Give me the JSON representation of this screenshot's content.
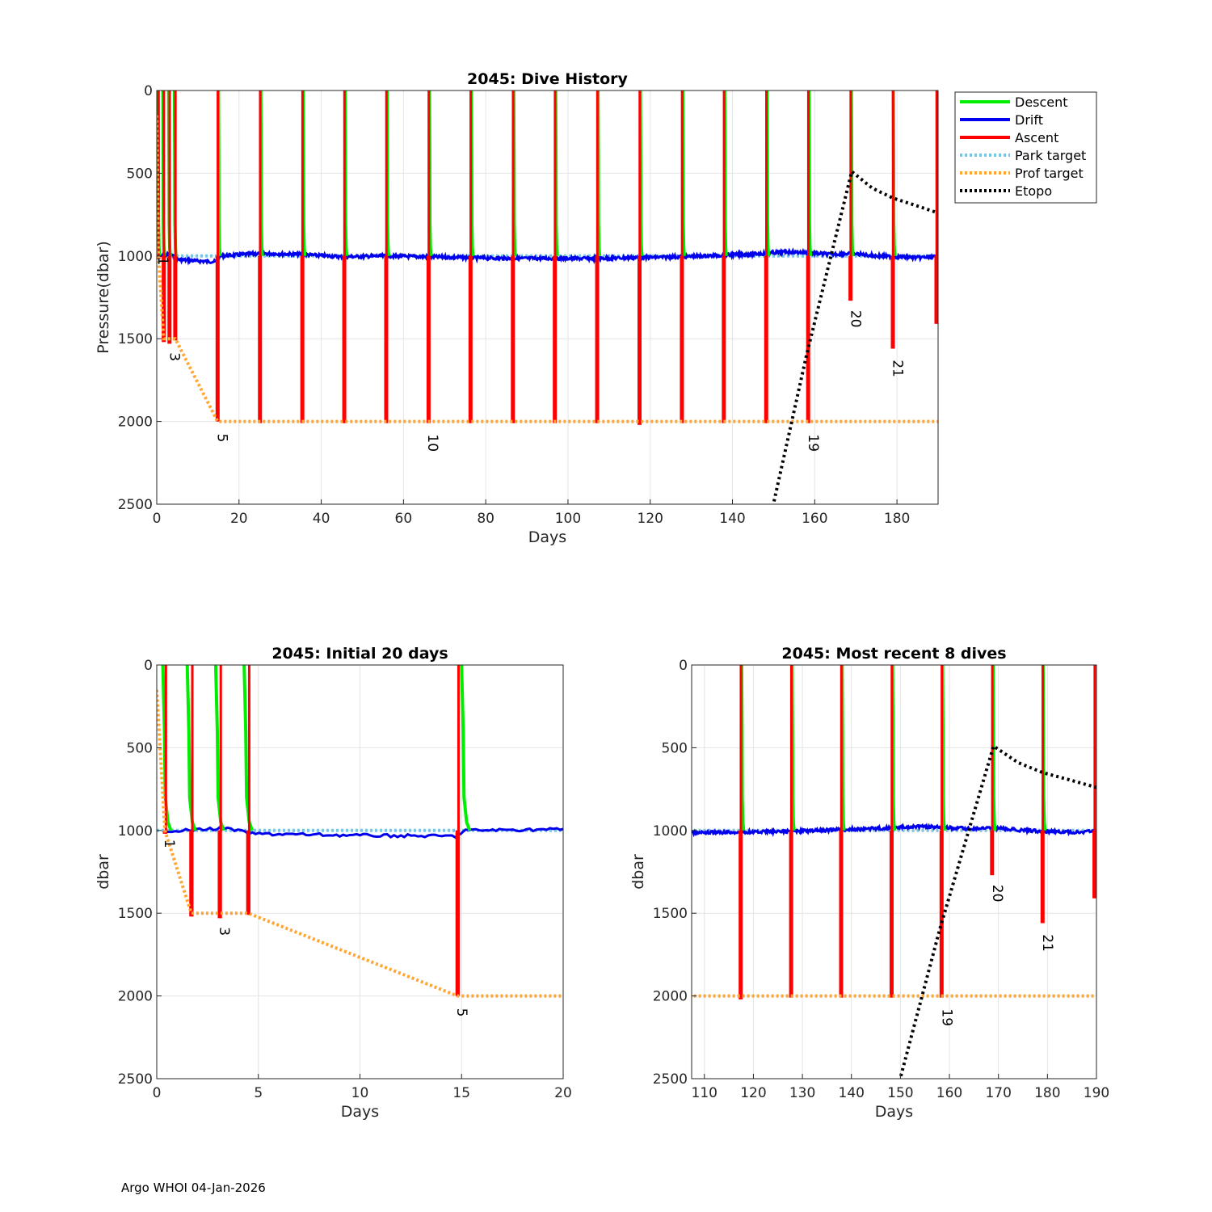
{
  "colors": {
    "descent": "#00ee00",
    "drift": "#0000ee",
    "ascent": "#ff0000",
    "park_target": "#7ec4e0",
    "prof_target": "#ffa530",
    "etopo": "#000000"
  },
  "footer": "Argo WHOI 04-Jan-2026",
  "legend": [
    "Descent",
    "Drift",
    "Ascent",
    "Park target",
    "Prof target",
    "Etopo"
  ],
  "chart_data": [
    {
      "id": "top",
      "type": "line",
      "title": "2045: Dive History",
      "xlabel": "Days",
      "ylabel": "Pressure(dbar)",
      "xlim": [
        0,
        190
      ],
      "ylim": [
        0,
        2500
      ],
      "y_reversed": true,
      "xticks": [
        0,
        20,
        40,
        60,
        80,
        100,
        120,
        140,
        160,
        180
      ],
      "yticks": [
        0,
        500,
        1000,
        1500,
        2000,
        2500
      ],
      "grid": true,
      "legend": "outside-right-top",
      "cycle_labels": [
        {
          "text": "1",
          "x": 0.4,
          "y": 1030
        },
        {
          "text": "3",
          "x": 3.2,
          "y": 1610
        },
        {
          "text": "5",
          "x": 14.8,
          "y": 2100
        },
        {
          "text": "10",
          "x": 66,
          "y": 2130
        },
        {
          "text": "19",
          "x": 158.6,
          "y": 2130
        },
        {
          "text": "20",
          "x": 168.9,
          "y": 1380
        },
        {
          "text": "21",
          "x": 179.1,
          "y": 1680
        }
      ]
    },
    {
      "id": "bl",
      "type": "line",
      "title": "2045: Initial 20 days",
      "xlabel": "Days",
      "ylabel": "dbar",
      "xlim": [
        0,
        20
      ],
      "ylim": [
        0,
        2500
      ],
      "y_reversed": true,
      "xticks": [
        0,
        5,
        10,
        15,
        20
      ],
      "yticks": [
        0,
        500,
        1000,
        1500,
        2000,
        2500
      ],
      "grid": true,
      "cycle_labels": [
        {
          "text": "1",
          "x": 0.4,
          "y": 1080
        },
        {
          "text": "3",
          "x": 3.1,
          "y": 1610
        },
        {
          "text": "5",
          "x": 14.8,
          "y": 2100
        }
      ]
    },
    {
      "id": "br",
      "type": "line",
      "title": "2045: Most recent 8 dives",
      "xlabel": "Days",
      "ylabel": "dbar",
      "xlim": [
        107.4,
        190
      ],
      "ylim": [
        0,
        2500
      ],
      "y_reversed": true,
      "xticks": [
        110,
        120,
        130,
        140,
        150,
        160,
        170,
        180,
        190
      ],
      "yticks": [
        0,
        500,
        1000,
        1500,
        2000,
        2500
      ],
      "grid": true,
      "cycle_labels": [
        {
          "text": "19",
          "x": 158.6,
          "y": 2130
        },
        {
          "text": "20",
          "x": 168.9,
          "y": 1380
        },
        {
          "text": "21",
          "x": 179.1,
          "y": 1680
        }
      ]
    }
  ],
  "series": {
    "descent_dives": [
      [
        0.3,
        0
      ],
      [
        1.5,
        0
      ],
      [
        2.9,
        0
      ],
      [
        4.3,
        0
      ],
      [
        15.0,
        0
      ],
      [
        25.3,
        0
      ],
      [
        35.6,
        0
      ],
      [
        45.8,
        0
      ],
      [
        56.0,
        0
      ],
      [
        66.3,
        0
      ],
      [
        76.5,
        0
      ],
      [
        86.8,
        0
      ],
      [
        97.0,
        0
      ],
      [
        107.3,
        0
      ],
      [
        117.6,
        0
      ],
      [
        127.9,
        0
      ],
      [
        138.1,
        0
      ],
      [
        148.4,
        0
      ],
      [
        158.6,
        0
      ],
      [
        168.9,
        0
      ],
      [
        179.1,
        0
      ]
    ],
    "ascent_profiles": [
      {
        "day": 0.4,
        "max": 1020
      },
      {
        "day": 1.7,
        "max": 1520
      },
      {
        "day": 3.1,
        "max": 1530
      },
      {
        "day": 4.5,
        "max": 1510
      },
      {
        "day": 14.8,
        "max": 2000
      },
      {
        "day": 25.1,
        "max": 2010
      },
      {
        "day": 35.4,
        "max": 2010
      },
      {
        "day": 45.6,
        "max": 2010
      },
      {
        "day": 55.8,
        "max": 2010
      },
      {
        "day": 66.1,
        "max": 2010
      },
      {
        "day": 76.3,
        "max": 2010
      },
      {
        "day": 86.6,
        "max": 2010
      },
      {
        "day": 96.8,
        "max": 2010
      },
      {
        "day": 107.1,
        "max": 2010
      },
      {
        "day": 117.4,
        "max": 2020
      },
      {
        "day": 127.7,
        "max": 2010
      },
      {
        "day": 137.9,
        "max": 2010
      },
      {
        "day": 148.2,
        "max": 2010
      },
      {
        "day": 158.4,
        "max": 2010
      },
      {
        "day": 168.7,
        "max": 1270
      },
      {
        "day": 179.0,
        "max": 1560
      },
      {
        "day": 189.6,
        "max": 1410
      }
    ],
    "drift_segments": [
      [
        0.4,
        1000
      ],
      [
        1.6,
        1000
      ],
      [
        3.3,
        985
      ],
      [
        4.7,
        1020
      ],
      [
        10,
        1030
      ],
      [
        14.7,
        1035
      ],
      [
        15.2,
        1000
      ],
      [
        25,
        985
      ],
      [
        35,
        990
      ],
      [
        45,
        1005
      ],
      [
        55,
        1000
      ],
      [
        66,
        1005
      ],
      [
        76,
        1010
      ],
      [
        86,
        1015
      ],
      [
        97,
        1015
      ],
      [
        107,
        1015
      ],
      [
        117,
        1010
      ],
      [
        128,
        1005
      ],
      [
        138,
        995
      ],
      [
        148,
        985
      ],
      [
        153,
        975
      ],
      [
        158,
        980
      ],
      [
        164,
        990
      ],
      [
        169,
        985
      ],
      [
        175,
        1000
      ],
      [
        180,
        1005
      ],
      [
        185,
        1010
      ],
      [
        190,
        1005
      ]
    ],
    "park_target": [
      [
        0,
        1000
      ],
      [
        190,
        1000
      ]
    ],
    "prof_target": [
      [
        0,
        150
      ],
      [
        0.4,
        1000
      ],
      [
        1.7,
        1500
      ],
      [
        4.5,
        1500
      ],
      [
        14.8,
        2000
      ],
      [
        190,
        2000
      ]
    ],
    "etopo": [
      [
        149.5,
        2550
      ],
      [
        158,
        1600
      ],
      [
        169,
        490
      ],
      [
        174,
        590
      ],
      [
        179,
        650
      ],
      [
        184,
        690
      ],
      [
        190,
        740
      ]
    ]
  }
}
